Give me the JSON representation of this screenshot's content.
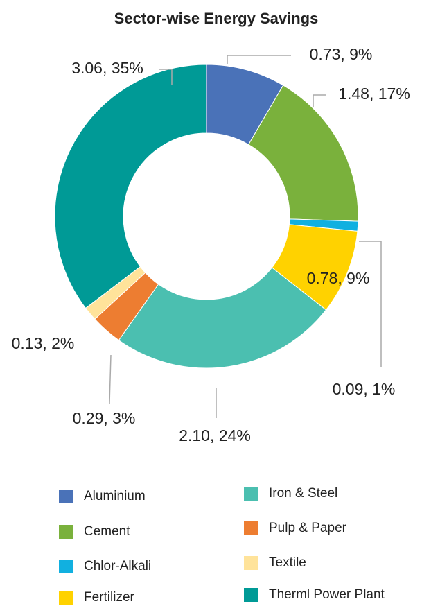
{
  "chart_data": {
    "type": "donut",
    "title": "Sector-wise Energy Savings",
    "categories": [
      "Aluminium",
      "Cement",
      "Chlor-Alkali",
      "Fertilizer",
      "Iron & Steel",
      "Pulp & Paper",
      "Textile",
      "Therml Power Plant"
    ],
    "values": [
      0.73,
      1.48,
      0.09,
      0.78,
      2.1,
      0.29,
      0.13,
      3.06
    ],
    "value_labels": [
      "0.73, 9%",
      "1.48, 17%",
      "0.09, 1%",
      "0.78, 9%",
      "2.10, 24%",
      "0.29, 3%",
      "0.13, 2%",
      "3.06, 35%"
    ],
    "colors": [
      "#4a72b8",
      "#7ab13c",
      "#11b0e0",
      "#ffd200",
      "#4bbfb0",
      "#ed7d31",
      "#ffe39a",
      "#009a96"
    ],
    "legend": "bottom"
  }
}
